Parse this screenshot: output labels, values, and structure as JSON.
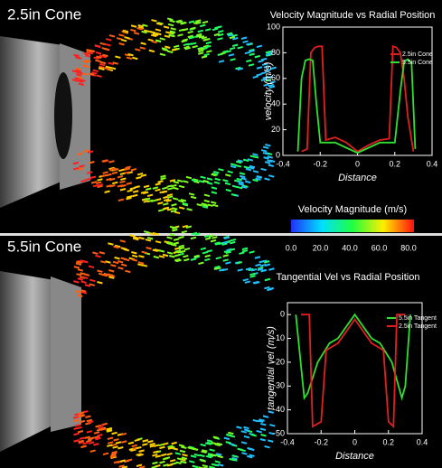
{
  "panels": [
    "2.5in Cone",
    "5.5in Cone"
  ],
  "colorbar": {
    "title": "Velocity Magnitude (m/s)",
    "ticks": [
      {
        "value": 0,
        "label": "0.0"
      },
      {
        "value": 20,
        "label": "20.0"
      },
      {
        "value": 40,
        "label": "40.0"
      },
      {
        "value": 60,
        "label": "60.0"
      },
      {
        "value": 80,
        "label": "80.0"
      }
    ]
  },
  "chart_data": [
    {
      "type": "line",
      "title": "Velocity Magnitude vs Radial Position",
      "x_label": "Distance",
      "y_label": "velocity  (m/s)",
      "xlim": [
        -0.4,
        0.4
      ],
      "xticks": [
        -0.4,
        -0.2,
        0,
        0.2,
        0.4
      ],
      "ylim": [
        0,
        100
      ],
      "yticks": [
        0,
        20,
        40,
        60,
        80,
        100
      ],
      "grid": false,
      "series": [
        {
          "name": "2.5in Cone",
          "color": "#e02020",
          "x": [
            -0.3,
            -0.27,
            -0.25,
            -0.23,
            -0.21,
            -0.19,
            -0.17,
            -0.12,
            -0.06,
            0,
            0.06,
            0.12,
            0.17,
            0.19,
            0.21,
            0.23,
            0.25,
            0.27,
            0.3
          ],
          "values": [
            3,
            5,
            80,
            84,
            85,
            85,
            12,
            14,
            10,
            3,
            8,
            12,
            13,
            85,
            84,
            80,
            60,
            30,
            3
          ]
        },
        {
          "name": "5.5in Cone",
          "color": "#30e030",
          "x": [
            -0.32,
            -0.3,
            -0.28,
            -0.26,
            -0.24,
            -0.22,
            -0.2,
            -0.12,
            -0.06,
            0,
            0.06,
            0.12,
            0.2,
            0.23,
            0.25,
            0.27,
            0.29,
            0.31
          ],
          "values": [
            3,
            60,
            74,
            75,
            74,
            40,
            10,
            10,
            6,
            2,
            6,
            10,
            10,
            50,
            73,
            75,
            72,
            5
          ]
        }
      ]
    },
    {
      "type": "line",
      "title": "Tangential Vel vs Radial Position",
      "x_label": "Distance",
      "y_label": "tangential vel (m/s)",
      "xlim": [
        -0.4,
        0.4
      ],
      "xticks": [
        -0.4,
        -0.2,
        0,
        0.2,
        0.4
      ],
      "ylim": [
        -50,
        5
      ],
      "yticks": [
        0,
        -10,
        -20,
        -30,
        -40,
        -50
      ],
      "grid": false,
      "series": [
        {
          "name": "5.5in Tangent",
          "color": "#30e030",
          "x": [
            -0.35,
            -0.3,
            -0.28,
            -0.22,
            -0.15,
            -0.1,
            0,
            0.1,
            0.15,
            0.22,
            0.28,
            0.3,
            0.33
          ],
          "values": [
            0,
            -35,
            -33,
            -20,
            -12,
            -10,
            0,
            -10,
            -12,
            -20,
            -35,
            -30,
            0
          ]
        },
        {
          "name": "2.5in Tangent",
          "color": "#e02020",
          "x": [
            -0.32,
            -0.27,
            -0.25,
            -0.2,
            -0.17,
            -0.1,
            0,
            0.1,
            0.17,
            0.2,
            0.23,
            0.25,
            0.3
          ],
          "values": [
            0,
            0,
            -47,
            -45,
            -15,
            -12,
            -2,
            -12,
            -15,
            -45,
            -47,
            0,
            0
          ]
        }
      ]
    }
  ]
}
